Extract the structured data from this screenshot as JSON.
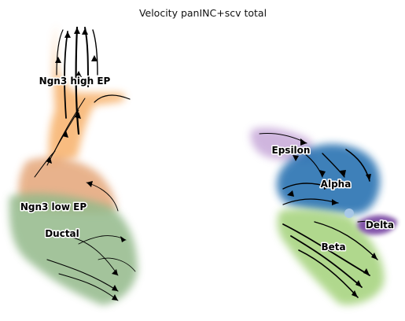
{
  "chart_data": {
    "type": "scatter",
    "subtype": "embedding_velocity_stream",
    "title": "Velocity panINC+scv total",
    "xlabel": "",
    "ylabel": "",
    "axes_visible": false,
    "grid": false,
    "legend": "on data",
    "clusters": [
      {
        "name": "Ngn3 high EP",
        "color": "#f7b16b"
      },
      {
        "name": "Ngn3 low EP",
        "color": "#e3a070"
      },
      {
        "name": "Ductal",
        "color": "#93b98a"
      },
      {
        "name": "Epsilon",
        "color": "#c7a9d9"
      },
      {
        "name": "Alpha",
        "color": "#2a73b2"
      },
      {
        "name": "Beta",
        "color": "#a8d481"
      },
      {
        "name": "Delta",
        "color": "#7b4ba5"
      }
    ]
  }
}
